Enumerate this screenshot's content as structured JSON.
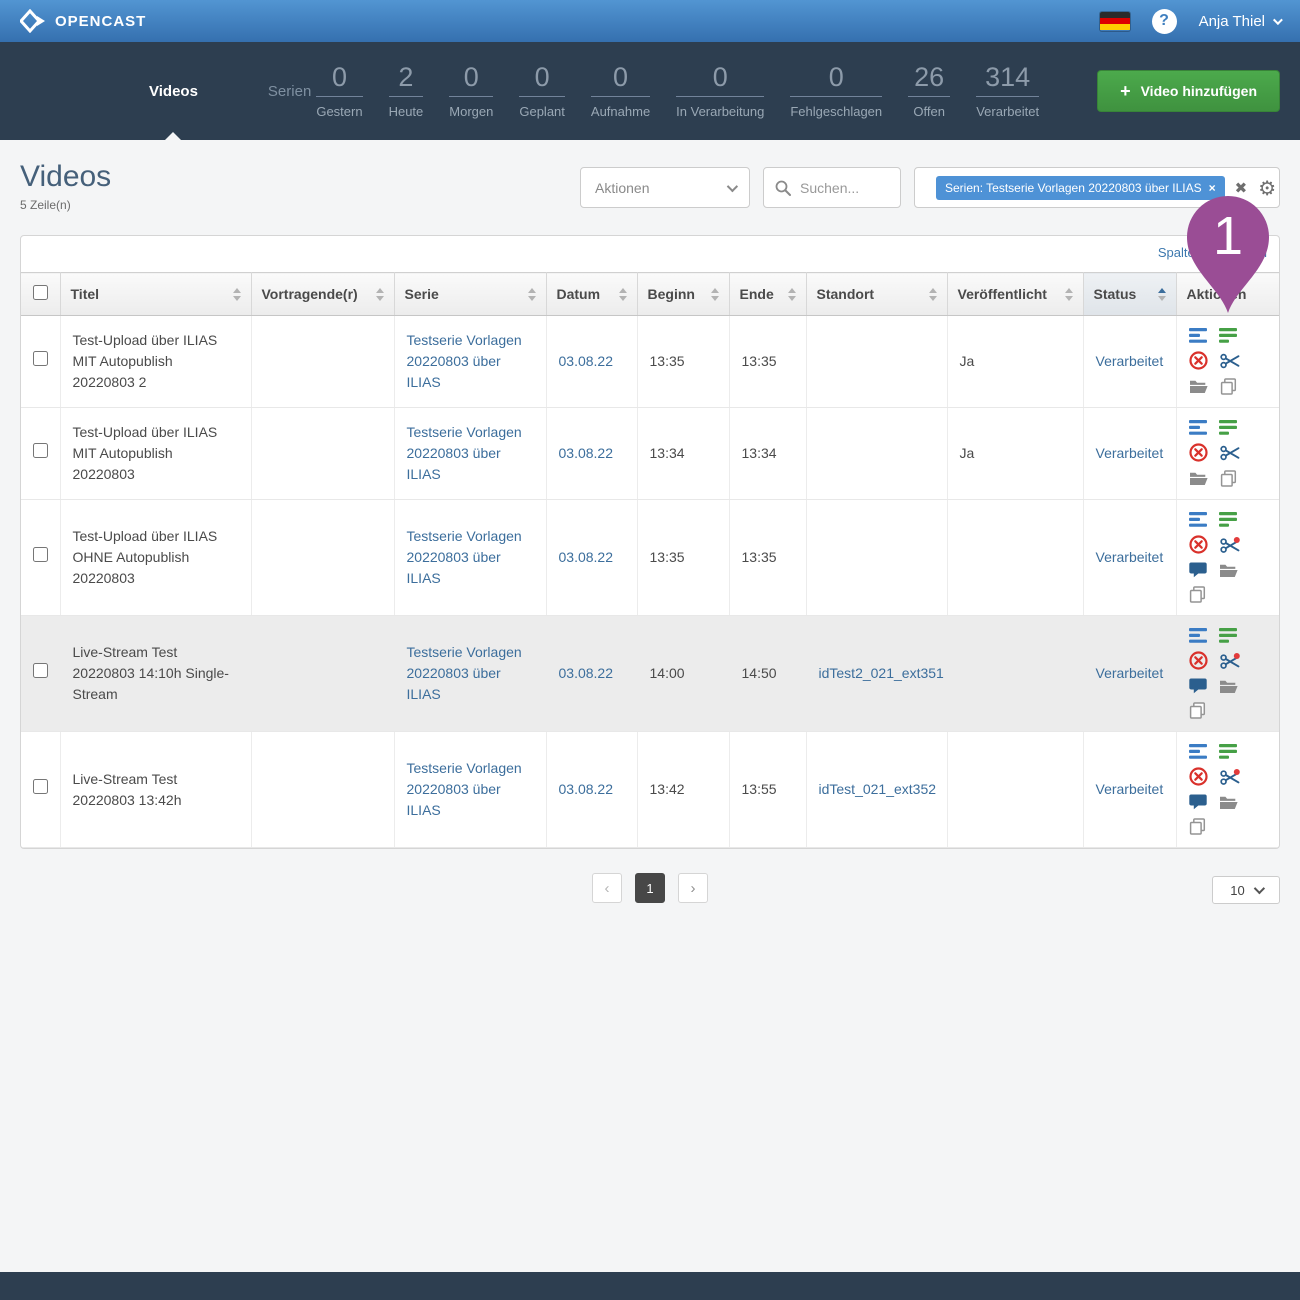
{
  "topbar": {
    "brand": "OPENCAST",
    "help_label": "?",
    "user": "Anja Thiel"
  },
  "nav": {
    "tabs": [
      {
        "label": "Videos",
        "active": true
      },
      {
        "label": "Serien",
        "active": false
      }
    ],
    "stats": [
      {
        "value": "0",
        "label": "Gestern"
      },
      {
        "value": "2",
        "label": "Heute"
      },
      {
        "value": "0",
        "label": "Morgen"
      },
      {
        "value": "0",
        "label": "Geplant"
      },
      {
        "value": "0",
        "label": "Aufnahme"
      },
      {
        "value": "0",
        "label": "In Verarbeitung"
      },
      {
        "value": "0",
        "label": "Fehlgeschlagen"
      },
      {
        "value": "26",
        "label": "Offen"
      },
      {
        "value": "314",
        "label": "Verarbeitet"
      }
    ],
    "add_video_label": "Video hinzufügen",
    "add_video_plus": "+"
  },
  "page": {
    "title": "Videos",
    "row_count": "5 Zeile(n)",
    "actions_dropdown": "Aktionen",
    "search_placeholder": "Suchen...",
    "filter_chip": "Serien: Testserie Vorlagen 20220803 über ILIAS",
    "chip_close": "×",
    "clear_filters": "✖",
    "gear": "⚙",
    "edit_columns_link": "Spalten bearbeiten"
  },
  "marker": {
    "label": "1",
    "color": "#9a4d95"
  },
  "table": {
    "columns": [
      {
        "label": "Titel",
        "sortable": true
      },
      {
        "label": "Vortragende(r)",
        "sortable": true
      },
      {
        "label": "Serie",
        "sortable": true
      },
      {
        "label": "Datum",
        "sortable": true
      },
      {
        "label": "Beginn",
        "sortable": true
      },
      {
        "label": "Ende",
        "sortable": true
      },
      {
        "label": "Standort",
        "sortable": true
      },
      {
        "label": "Veröffentlicht",
        "sortable": true
      },
      {
        "label": "Status",
        "sortable": true,
        "sorted": "asc"
      },
      {
        "label": "Aktionen",
        "sortable": false
      }
    ],
    "rows": [
      {
        "title": "Test-Upload über ILIAS MIT Autopublish 20220803 2",
        "presenter": "",
        "series": "Testserie Vorlagen 20220803 über ILIAS",
        "date": "03.08.22",
        "start": "13:35",
        "end": "13:35",
        "location": "",
        "published": "Ja",
        "status": "Verarbeitet",
        "highlighted": false,
        "actions": [
          "event-details",
          "assets",
          "delete",
          "cut",
          "open-folder",
          "duplicate"
        ]
      },
      {
        "title": "Test-Upload über ILIAS MIT Autopublish 20220803",
        "presenter": "",
        "series": "Testserie Vorlagen 20220803 über ILIAS",
        "date": "03.08.22",
        "start": "13:34",
        "end": "13:34",
        "location": "",
        "published": "Ja",
        "status": "Verarbeitet",
        "highlighted": false,
        "actions": [
          "event-details",
          "assets",
          "delete",
          "cut",
          "open-folder",
          "duplicate"
        ]
      },
      {
        "title": "Test-Upload über ILIAS OHNE Autopublish 20220803",
        "presenter": "",
        "series": "Testserie Vorlagen 20220803 über ILIAS",
        "date": "03.08.22",
        "start": "13:35",
        "end": "13:35",
        "location": "",
        "published": "",
        "status": "Verarbeitet",
        "highlighted": false,
        "actions": [
          "event-details",
          "assets",
          "delete",
          "cut-alert",
          "comments",
          "open-folder",
          "duplicate"
        ]
      },
      {
        "title": "Live-Stream Test 20220803 14:10h Single-Stream",
        "presenter": "",
        "series": "Testserie Vorlagen 20220803 über ILIAS",
        "date": "03.08.22",
        "start": "14:00",
        "end": "14:50",
        "location": "idTest2_021_ext351",
        "published": "",
        "status": "Verarbeitet",
        "highlighted": true,
        "actions": [
          "event-details",
          "assets",
          "delete",
          "cut-alert",
          "comments",
          "open-folder",
          "duplicate"
        ]
      },
      {
        "title": "Live-Stream Test 20220803 13:42h",
        "presenter": "",
        "series": "Testserie Vorlagen 20220803 über ILIAS",
        "date": "03.08.22",
        "start": "13:42",
        "end": "13:55",
        "location": "idTest_021_ext352",
        "published": "",
        "status": "Verarbeitet",
        "highlighted": false,
        "actions": [
          "event-details",
          "assets",
          "delete",
          "cut-alert",
          "comments",
          "open-folder",
          "duplicate"
        ]
      }
    ]
  },
  "pagination": {
    "prev": "‹",
    "current": "1",
    "next": "›",
    "per_page": "10"
  }
}
